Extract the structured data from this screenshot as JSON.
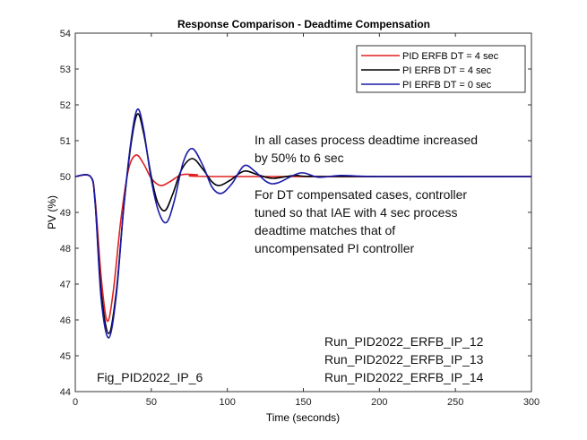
{
  "chart_data": {
    "type": "line",
    "title": "Response Comparison - Deadtime Compensation",
    "xlabel": "Time (seconds)",
    "ylabel": "PV (%)",
    "xlim": [
      0,
      300
    ],
    "ylim": [
      44,
      54
    ],
    "xticks": [
      0,
      50,
      100,
      150,
      200,
      250,
      300
    ],
    "yticks": [
      44,
      45,
      46,
      47,
      48,
      49,
      50,
      51,
      52,
      53,
      54
    ],
    "grid": false,
    "legend_position": "top-right",
    "series": [
      {
        "name": "PID ERFB DT = 4 sec",
        "color": "#e02020",
        "points": [
          [
            0,
            50
          ],
          [
            10,
            50
          ],
          [
            13,
            49.4
          ],
          [
            17,
            47.2
          ],
          [
            21,
            45.97
          ],
          [
            25,
            46.8
          ],
          [
            30,
            48.8
          ],
          [
            35,
            50.2
          ],
          [
            40,
            50.6
          ],
          [
            45,
            50.35
          ],
          [
            50,
            49.95
          ],
          [
            56,
            49.75
          ],
          [
            62,
            49.85
          ],
          [
            70,
            50.05
          ],
          [
            80,
            50.05
          ],
          [
            95,
            50.0
          ],
          [
            300,
            50
          ]
        ]
      },
      {
        "name": "PI ERFB DT = 4 sec",
        "color": "#000000",
        "points": [
          [
            0,
            50
          ],
          [
            10,
            50
          ],
          [
            13,
            49.3
          ],
          [
            17,
            46.8
          ],
          [
            22,
            45.62
          ],
          [
            27,
            46.8
          ],
          [
            32,
            49.2
          ],
          [
            37,
            51.0
          ],
          [
            41,
            51.75
          ],
          [
            45,
            51.2
          ],
          [
            50,
            50.0
          ],
          [
            54,
            49.3
          ],
          [
            59,
            49.05
          ],
          [
            64,
            49.5
          ],
          [
            70,
            50.2
          ],
          [
            77,
            50.5
          ],
          [
            84,
            50.2
          ],
          [
            90,
            49.85
          ],
          [
            95,
            49.75
          ],
          [
            102,
            49.9
          ],
          [
            111,
            50.15
          ],
          [
            120,
            50.05
          ],
          [
            130,
            49.95
          ],
          [
            145,
            50.03
          ],
          [
            165,
            50
          ],
          [
            300,
            50
          ]
        ]
      },
      {
        "name": "PI ERFB DT = 0 sec",
        "color": "#1a1aa8",
        "points": [
          [
            0,
            50
          ],
          [
            10,
            50
          ],
          [
            13,
            49.3
          ],
          [
            17,
            46.6
          ],
          [
            22,
            45.5
          ],
          [
            27,
            46.7
          ],
          [
            32,
            49.2
          ],
          [
            37,
            51.1
          ],
          [
            41,
            51.88
          ],
          [
            45,
            51.3
          ],
          [
            50,
            49.9
          ],
          [
            55,
            49.0
          ],
          [
            60,
            48.72
          ],
          [
            65,
            49.3
          ],
          [
            71,
            50.4
          ],
          [
            77,
            50.78
          ],
          [
            84,
            50.3
          ],
          [
            90,
            49.7
          ],
          [
            96,
            49.53
          ],
          [
            103,
            49.8
          ],
          [
            111,
            50.3
          ],
          [
            118,
            50.15
          ],
          [
            126,
            49.85
          ],
          [
            133,
            49.82
          ],
          [
            148,
            50.1
          ],
          [
            160,
            49.98
          ],
          [
            175,
            50.03
          ],
          [
            200,
            50
          ],
          [
            300,
            50
          ]
        ]
      }
    ],
    "annotations": {
      "note1": [
        "In all cases process deadtime increased",
        "by 50% to 6 sec"
      ],
      "note2": [
        "For DT compensated cases, controller",
        "tuned so that IAE with 4 sec process",
        "deadtime matches that of",
        "uncompensated PI controller"
      ],
      "runs": [
        "Run_PID2022_ERFB_IP_12",
        "Run_PID2022_ERFB_IP_13",
        "Run_PID2022_ERFB_IP_14"
      ],
      "fig": "Fig_PID2022_IP_6"
    }
  }
}
